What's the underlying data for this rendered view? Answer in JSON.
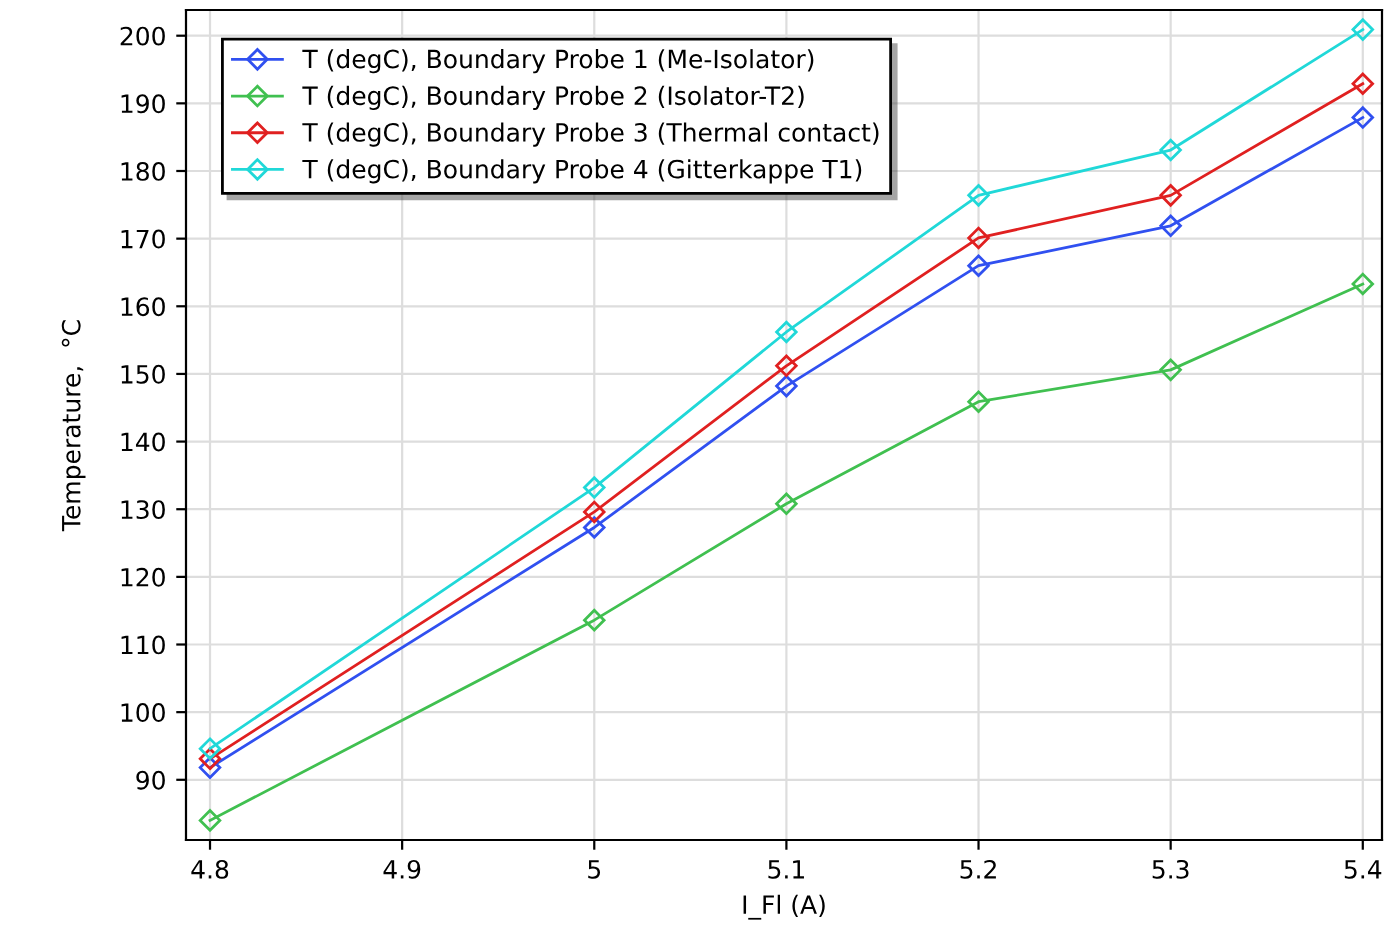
{
  "chart_data": {
    "type": "line",
    "xlabel": "I_Fl (A)",
    "ylabel": "Temperature,  °C",
    "x": [
      4.8,
      5,
      5.1,
      5.2,
      5.3,
      5.4
    ],
    "series": [
      {
        "name": "T (degC), Boundary Probe 1 (Me-Isolator)",
        "color": "#3050f0",
        "values": [
          91.8,
          127.3,
          148.2,
          166,
          171.9,
          187.9
        ]
      },
      {
        "name": "T (degC), Boundary Probe 2 (Isolator-T2)",
        "color": "#40c050",
        "values": [
          84,
          113.6,
          130.8,
          145.9,
          150.6,
          163.3
        ]
      },
      {
        "name": "T (degC), Boundary Probe 3 (Thermal contact)",
        "color": "#e02020",
        "values": [
          93.1,
          129.6,
          151.2,
          170.1,
          176.4,
          192.9
        ]
      },
      {
        "name": "T (degC), Boundary Probe 4 (Gitterkappe T1)",
        "color": "#20d8d8",
        "values": [
          94.6,
          133.2,
          156.2,
          176.4,
          183.1,
          200.9
        ]
      }
    ],
    "xlim": [
      4.7875,
      5.41
    ],
    "xticks": [
      4.8,
      4.9,
      5,
      5.1,
      5.2,
      5.3,
      5.4
    ],
    "ylim": [
      81.1,
      203.8
    ],
    "yticks": [
      90,
      100,
      110,
      120,
      130,
      140,
      150,
      160,
      170,
      180,
      190,
      200
    ],
    "grid": true,
    "legend": "top left",
    "marker": "diamond",
    "line_style": "solid"
  }
}
